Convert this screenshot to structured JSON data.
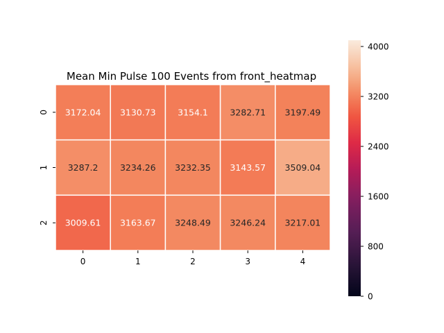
{
  "chart_data": {
    "type": "heatmap",
    "title": "Mean Min Pulse 100 Events from front_heatmap",
    "xlabel": "",
    "ylabel": "",
    "x_categories": [
      "0",
      "1",
      "2",
      "3",
      "4"
    ],
    "y_categories": [
      "0",
      "1",
      "2"
    ],
    "values": [
      [
        3172.04,
        3130.73,
        3154.1,
        3282.71,
        3197.49
      ],
      [
        3287.2,
        3234.26,
        3232.35,
        3143.57,
        3509.04
      ],
      [
        3009.61,
        3163.67,
        3248.49,
        3246.24,
        3217.01
      ]
    ],
    "value_labels": [
      [
        "3172.04",
        "3130.73",
        "3154.1",
        "3282.71",
        "3197.49"
      ],
      [
        "3287.2",
        "3234.26",
        "3232.35",
        "3143.57",
        "3509.04"
      ],
      [
        "3009.61",
        "3163.67",
        "3248.49",
        "3246.24",
        "3217.01"
      ]
    ],
    "colorbar": {
      "min": 0,
      "max": 4100,
      "ticks": [
        0,
        800,
        1600,
        2400,
        3200,
        4000
      ],
      "tick_labels": [
        "0",
        "800",
        "1600",
        "2400",
        "3200",
        "4000"
      ]
    },
    "colormap": "rocket",
    "grid": false,
    "cell_border_color": "#ffffff"
  }
}
